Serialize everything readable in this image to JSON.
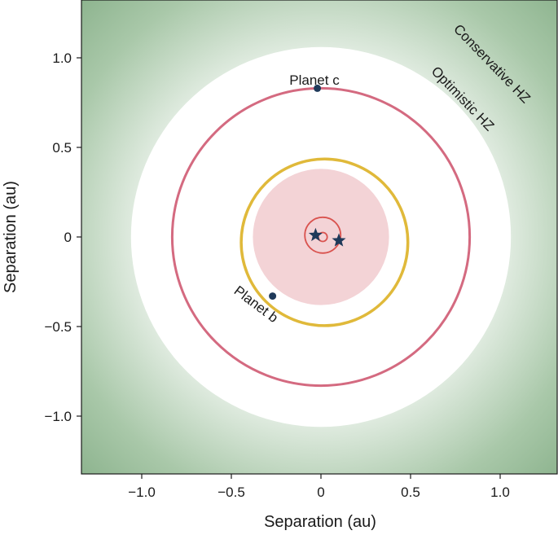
{
  "chart_data": {
    "type": "scatter",
    "title": "",
    "xlabel": "Separation (au)",
    "ylabel": "Separation (au)",
    "xlim": [
      -1.33,
      1.33
    ],
    "ylim": [
      -1.33,
      1.33
    ],
    "x_ticks": [
      -1.0,
      -0.5,
      0,
      0.5,
      1.0
    ],
    "x_tick_labels": [
      "−1.0",
      "−0.5",
      "0",
      "0.5",
      "1.0"
    ],
    "y_ticks": [
      1.0,
      0.5,
      0,
      -0.5,
      -1.0
    ],
    "y_tick_labels": [
      "1.0",
      "0.5",
      "0",
      "−0.5",
      "−1.0"
    ],
    "grid": false,
    "colors": {
      "hz_outer": "#5a8f5e",
      "hz_inner": "#e9f1e9",
      "planet_c_orbit": "#d46a80",
      "planet_b_orbit": "#e0b93a",
      "unstable_zone": "#f3d3d6",
      "binary_orbit": "#d9534f",
      "marker": "#1f3a5a"
    },
    "regions": {
      "conservative_hz": {
        "label": "Conservative HZ"
      },
      "optimistic_hz": {
        "label": "Optimistic HZ",
        "inner_radius": 1.06
      },
      "unstable_zone": {
        "radius": 0.38
      }
    },
    "orbits": [
      {
        "name": "Planet c",
        "radius": 0.83,
        "center": [
          0,
          0
        ]
      },
      {
        "name": "Planet b",
        "radius": 0.465,
        "center": [
          0.02,
          -0.03
        ]
      }
    ],
    "binary_orbits": [
      {
        "radius": 0.1,
        "center": [
          0.01,
          0.01
        ]
      },
      {
        "radius": 0.025,
        "center": [
          0.01,
          0.0
        ]
      }
    ],
    "planets": [
      {
        "label": "Planet c",
        "x": -0.02,
        "y": 0.83
      },
      {
        "label": "Planet b",
        "x": -0.27,
        "y": -0.33
      }
    ],
    "stars": [
      {
        "x": -0.03,
        "y": 0.01
      },
      {
        "x": 0.1,
        "y": -0.02
      }
    ]
  }
}
